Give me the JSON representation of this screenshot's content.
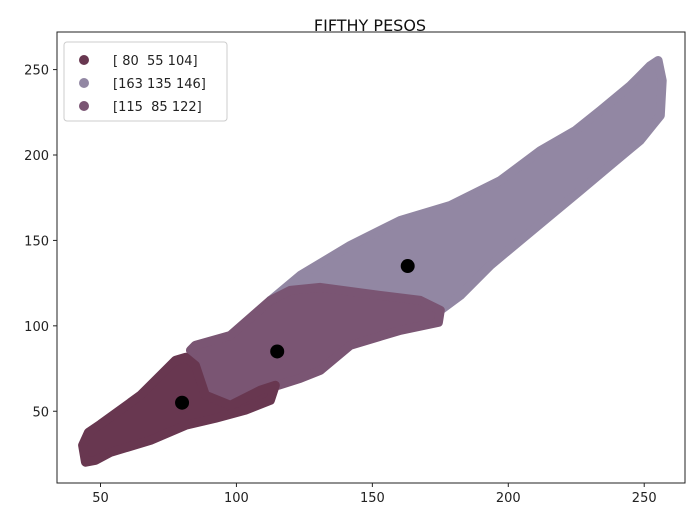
{
  "chart_data": {
    "type": "scatter",
    "title": "FIFTHY PESOS",
    "xlabel": "",
    "ylabel": "",
    "xlim": [
      34,
      265
    ],
    "ylim": [
      8,
      272
    ],
    "xticks": [
      50,
      100,
      150,
      200,
      250
    ],
    "yticks": [
      50,
      100,
      150,
      200,
      250
    ],
    "grid": false,
    "legend_placement": "top-left",
    "series": [
      {
        "name": "[163 135 146]",
        "color": "#9287a3",
        "region": [
          [
            112.5,
            114.9
          ],
          [
            123.5,
            129.5
          ],
          [
            141.9,
            147.1
          ],
          [
            160.3,
            161.7
          ],
          [
            178.7,
            170.5
          ],
          [
            197.1,
            185.1
          ],
          [
            211.8,
            202.6
          ],
          [
            224.6,
            214.3
          ],
          [
            233.8,
            226
          ],
          [
            244.9,
            240.6
          ],
          [
            252.2,
            252.3
          ],
          [
            255.1,
            255.3
          ],
          [
            256.6,
            243.6
          ],
          [
            255.9,
            223.1
          ],
          [
            248.5,
            208.5
          ],
          [
            237.5,
            193.9
          ],
          [
            226.5,
            179.2
          ],
          [
            215.4,
            164.6
          ],
          [
            204.4,
            150
          ],
          [
            193.4,
            135.4
          ],
          [
            182.4,
            117.8
          ],
          [
            175,
            109.1
          ],
          [
            167.6,
            114.9
          ],
          [
            152.9,
            117.8
          ],
          [
            130.9,
            122.5
          ],
          [
            119.9,
            120.8
          ]
        ]
      },
      {
        "name": "[115  85 122]",
        "color": "#7a5573",
        "region": [
          [
            83.1,
            85.7
          ],
          [
            84.9,
            88.6
          ],
          [
            97.8,
            94.4
          ],
          [
            112.5,
            114.9
          ],
          [
            119.9,
            120.8
          ],
          [
            130.9,
            122.5
          ],
          [
            152.9,
            117.8
          ],
          [
            167.6,
            114.9
          ],
          [
            175,
            109.1
          ],
          [
            174.3,
            102
          ],
          [
            160.3,
            97.4
          ],
          [
            141.9,
            88.6
          ],
          [
            130.9,
            74
          ],
          [
            123.5,
            69.3
          ],
          [
            115.4,
            65.2
          ],
          [
            108.8,
            62.3
          ],
          [
            97.8,
            53.5
          ],
          [
            88.6,
            59.4
          ],
          [
            84.9,
            76.9
          ]
        ]
      },
      {
        "name": "[ 80  55 104]",
        "color": "#683750",
        "region": [
          [
            44.5,
            20.2
          ],
          [
            43.4,
            30.1
          ],
          [
            45.6,
            37.7
          ],
          [
            50,
            42.4
          ],
          [
            64.7,
            59.4
          ],
          [
            72.1,
            71.1
          ],
          [
            77.6,
            79.8
          ],
          [
            81.3,
            81.6
          ],
          [
            84.9,
            76.9
          ],
          [
            88.6,
            59.4
          ],
          [
            97.8,
            53.5
          ],
          [
            108.8,
            62.3
          ],
          [
            114.3,
            65.2
          ],
          [
            112.5,
            56.4
          ],
          [
            103.3,
            50.6
          ],
          [
            92.3,
            45.9
          ],
          [
            81.3,
            41.8
          ],
          [
            68.4,
            33.0
          ],
          [
            53.7,
            26.0
          ],
          [
            48.2,
            21.3
          ]
        ]
      }
    ],
    "legend_order": [
      2,
      0,
      1
    ],
    "centroids": {
      "color": "#000000",
      "points": [
        [
          80,
          55
        ],
        [
          163,
          135
        ],
        [
          115,
          85
        ]
      ]
    }
  }
}
